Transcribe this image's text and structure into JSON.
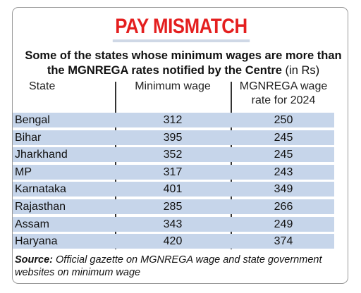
{
  "header": {
    "title": "PAY MISMATCH",
    "subtitle_bold": "Some of the states whose minimum wages are more than the MGNREGA rates notified by the Centre",
    "subtitle_unit": "(in Rs)"
  },
  "table": {
    "columns": [
      "State",
      "Minimum wage",
      "MGNREGA wage",
      "rate for 2024"
    ],
    "rows": [
      {
        "state": "Bengal",
        "min_wage": "312",
        "mgnrega": "250"
      },
      {
        "state": "Bihar",
        "min_wage": "395",
        "mgnrega": "245"
      },
      {
        "state": "Jharkhand",
        "min_wage": "352",
        "mgnrega": "245"
      },
      {
        "state": "MP",
        "min_wage": "317",
        "mgnrega": "243"
      },
      {
        "state": "Karnataka",
        "min_wage": "401",
        "mgnrega": "349"
      },
      {
        "state": "Rajasthan",
        "min_wage": "285",
        "mgnrega": "266"
      },
      {
        "state": "Assam",
        "min_wage": "343",
        "mgnrega": "249"
      },
      {
        "state": "Haryana",
        "min_wage": "420",
        "mgnrega": "374"
      }
    ]
  },
  "source": {
    "label": "Source:",
    "text": "Official gazette on MGNREGA wage and state government websites on minimum wage"
  },
  "colors": {
    "title": "#e41f1f",
    "row_shade": "#c6d5ea",
    "title_underline": "#cfd8e6"
  },
  "chart_data": {
    "type": "table",
    "title": "PAY MISMATCH",
    "subtitle": "Some of the states whose minimum wages are more than the MGNREGA rates notified by the Centre (in Rs)",
    "columns": [
      "State",
      "Minimum wage",
      "MGNREGA wage rate for 2024"
    ],
    "categories": [
      "Bengal",
      "Bihar",
      "Jharkhand",
      "MP",
      "Karnataka",
      "Rajasthan",
      "Assam",
      "Haryana"
    ],
    "series": [
      {
        "name": "Minimum wage",
        "values": [
          312,
          395,
          352,
          317,
          401,
          285,
          343,
          420
        ]
      },
      {
        "name": "MGNREGA wage rate for 2024",
        "values": [
          250,
          245,
          245,
          243,
          349,
          266,
          249,
          374
        ]
      }
    ],
    "source": "Official gazette on MGNREGA wage and state government websites on minimum wage"
  }
}
